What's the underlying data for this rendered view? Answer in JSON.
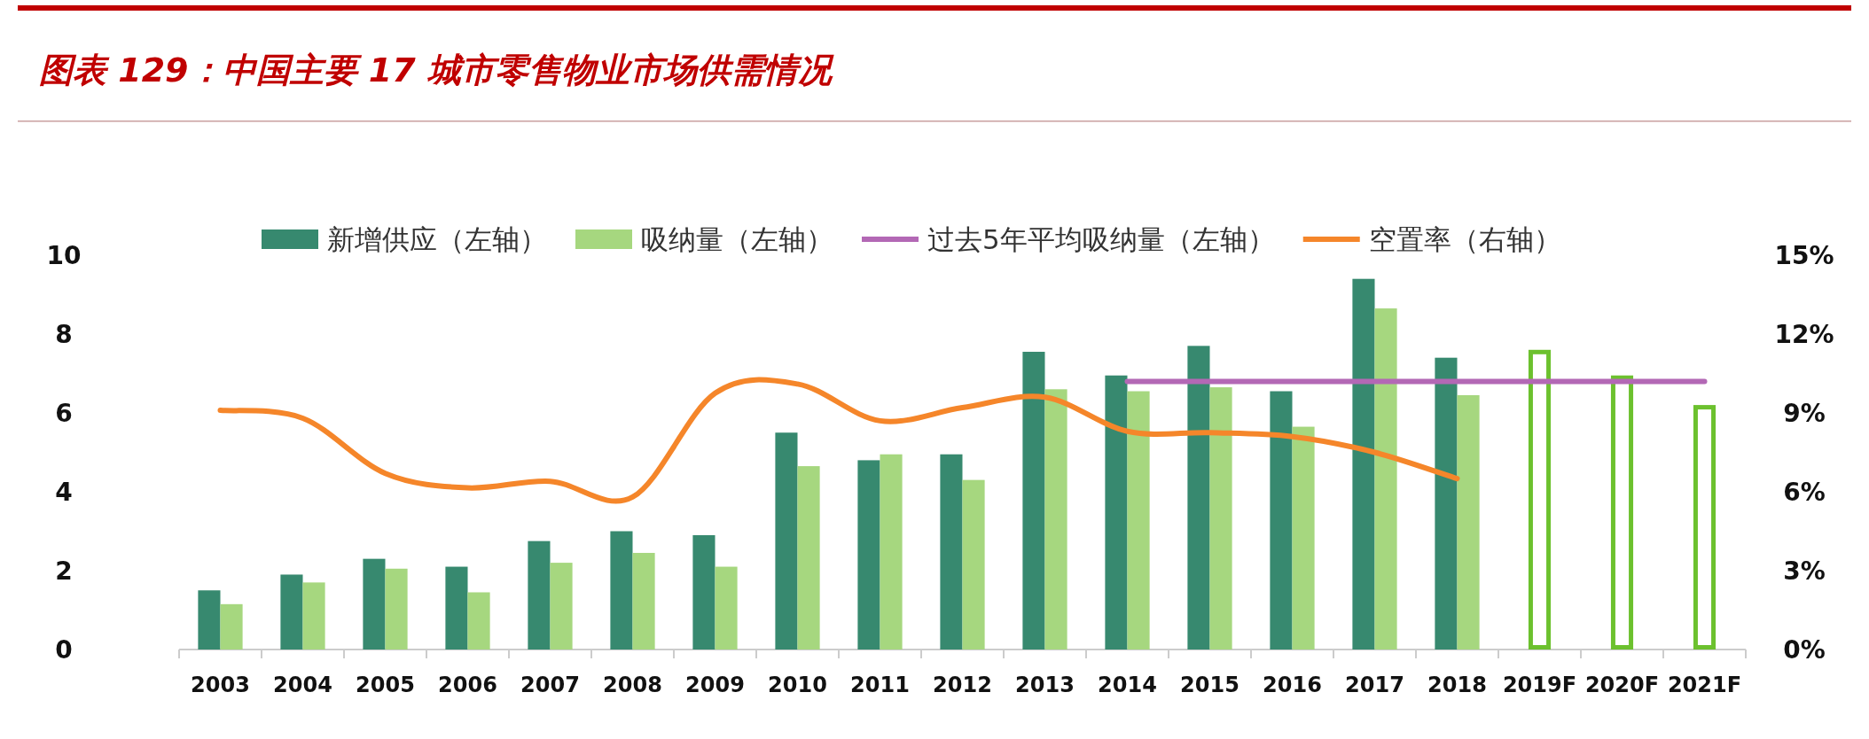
{
  "chart_data": {
    "type": "bar",
    "title": "图表 129：中国主要 17 城市零售物业市场供需情况",
    "categories": [
      "2003",
      "2004",
      "2005",
      "2006",
      "2007",
      "2008",
      "2009",
      "2010",
      "2011",
      "2012",
      "2013",
      "2014",
      "2015",
      "2016",
      "2017",
      "2018",
      "2019F",
      "2020F",
      "2021F"
    ],
    "ylim": [
      0,
      10
    ],
    "yticks": [
      0,
      2,
      4,
      6,
      8,
      10
    ],
    "y2lim": [
      0,
      15
    ],
    "y2ticks": [
      {
        "value": 0,
        "label": "0%"
      },
      {
        "value": 3,
        "label": "3%"
      },
      {
        "value": 6,
        "label": "6%"
      },
      {
        "value": 9,
        "label": "9%"
      },
      {
        "value": 12,
        "label": "12%"
      },
      {
        "value": 15,
        "label": "15%"
      }
    ],
    "grid": false,
    "legend": "top",
    "series": [
      {
        "name": "新增供应（左轴）",
        "color": "#37896f",
        "values": [
          1.5,
          1.9,
          2.3,
          2.1,
          2.75,
          3.0,
          2.9,
          5.5,
          4.8,
          4.95,
          7.55,
          6.95,
          7.7,
          6.55,
          9.4,
          7.4,
          null,
          null,
          null
        ]
      },
      {
        "name": "吸纳量（左轴）",
        "color": "#a6d77f",
        "values": [
          1.15,
          1.7,
          2.05,
          1.45,
          2.2,
          2.45,
          2.1,
          4.65,
          4.95,
          4.3,
          6.6,
          6.55,
          6.65,
          5.65,
          8.65,
          6.45,
          null,
          null,
          null
        ]
      },
      {
        "color": "#6cc12e",
        "values": [
          null,
          null,
          null,
          null,
          null,
          null,
          null,
          null,
          null,
          null,
          null,
          null,
          null,
          null,
          null,
          null,
          7.6,
          6.95,
          6.2
        ]
      },
      {
        "name": "过去5年平均吸纳量（左轴）",
        "type": "line",
        "color": "#b368b5",
        "values": [
          null,
          null,
          null,
          null,
          null,
          null,
          null,
          null,
          null,
          null,
          null,
          6.8,
          6.8,
          6.8,
          6.8,
          6.8,
          6.8,
          6.8,
          6.8
        ]
      },
      {
        "name": "空置率（右轴）",
        "type": "line",
        "axis": "y2",
        "color": "#f5862a",
        "values": [
          9.1,
          8.8,
          6.7,
          6.15,
          6.4,
          5.8,
          9.75,
          10.1,
          8.7,
          9.2,
          9.6,
          8.3,
          8.25,
          8.1,
          7.5,
          6.5,
          null,
          null,
          null
        ]
      }
    ]
  }
}
